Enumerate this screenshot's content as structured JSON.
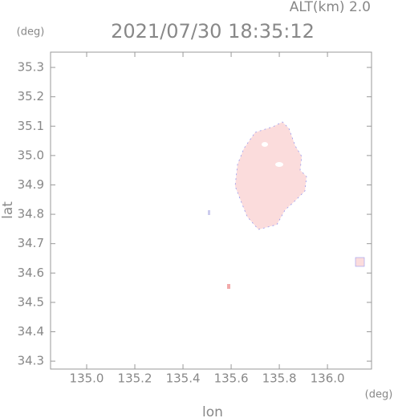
{
  "chart_data": {
    "type": "map",
    "title": "2021/07/30 18:35:12",
    "subtitle": "ALT(km) 2.0",
    "x_label": "lon",
    "y_label": "lat",
    "x_unit": "(deg)",
    "y_unit": "(deg)",
    "xlim": [
      134.85,
      136.183
    ],
    "ylim": [
      34.273,
      35.352
    ],
    "xticks": [
      {
        "value": 135.0,
        "label": "135.0"
      },
      135.2,
      135.4,
      135.6,
      135.8,
      {
        "value": 136.0,
        "label": "136.0"
      }
    ],
    "yticks": [
      34.3,
      34.4,
      34.5,
      34.6,
      34.7,
      34.8,
      34.9,
      {
        "value": 35.0,
        "label": "35.0"
      },
      35.1,
      35.2,
      35.3
    ]
  }
}
